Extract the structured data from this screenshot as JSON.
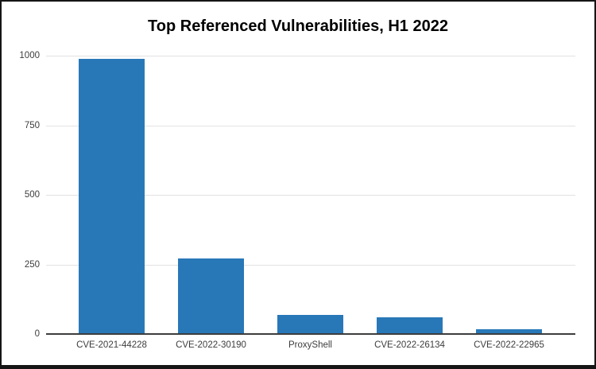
{
  "window": {
    "background": "#ffffff",
    "border_color": "#151515"
  },
  "chart_data": {
    "type": "bar",
    "title": "Top Referenced Vulnerabilities, H1 2022",
    "categories": [
      "CVE-2021-44228",
      "CVE-2022-30190",
      "ProxyShell",
      "CVE-2022-26134",
      "CVE-2022-22965"
    ],
    "values": [
      985,
      270,
      65,
      57,
      15
    ],
    "xlabel": "",
    "ylabel": "",
    "ylim": [
      0,
      1000
    ],
    "yticks": [
      0,
      250,
      500,
      750,
      1000
    ],
    "grid": "horizontal",
    "legend_position": "none",
    "bar_color": "#2878b8",
    "grid_color": "#e2e2e2",
    "axis_color": "#3d3d3d",
    "tick_label_color": "#3d3d3d",
    "title_color": "#000000"
  }
}
